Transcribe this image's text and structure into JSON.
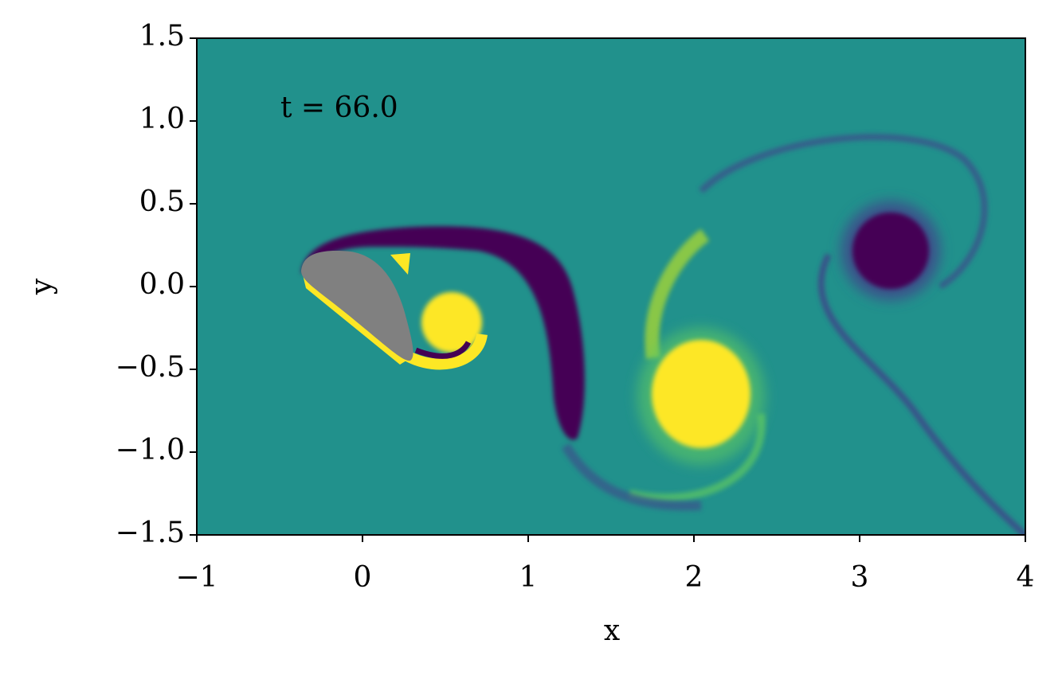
{
  "chart_data": {
    "type": "field",
    "annotation": "t = 66.0",
    "xlabel": "x",
    "ylabel": "y",
    "xlim": [
      -1,
      4
    ],
    "ylim": [
      -1.5,
      1.5
    ],
    "xticks": [
      {
        "value": -1,
        "label": "−1"
      },
      0,
      1,
      2,
      3,
      4
    ],
    "yticks": [
      {
        "value": -1.5,
        "label": "−1.5"
      },
      {
        "value": -1,
        "label": "−1.0"
      },
      {
        "value": -0.5,
        "label": "−0.5"
      },
      {
        "value": 0,
        "label": "0.0"
      },
      1.5,
      {
        "value": 0.5,
        "label": "0.5"
      },
      {
        "value": 1,
        "label": "1.0"
      }
    ],
    "background": "#21918c"
  }
}
